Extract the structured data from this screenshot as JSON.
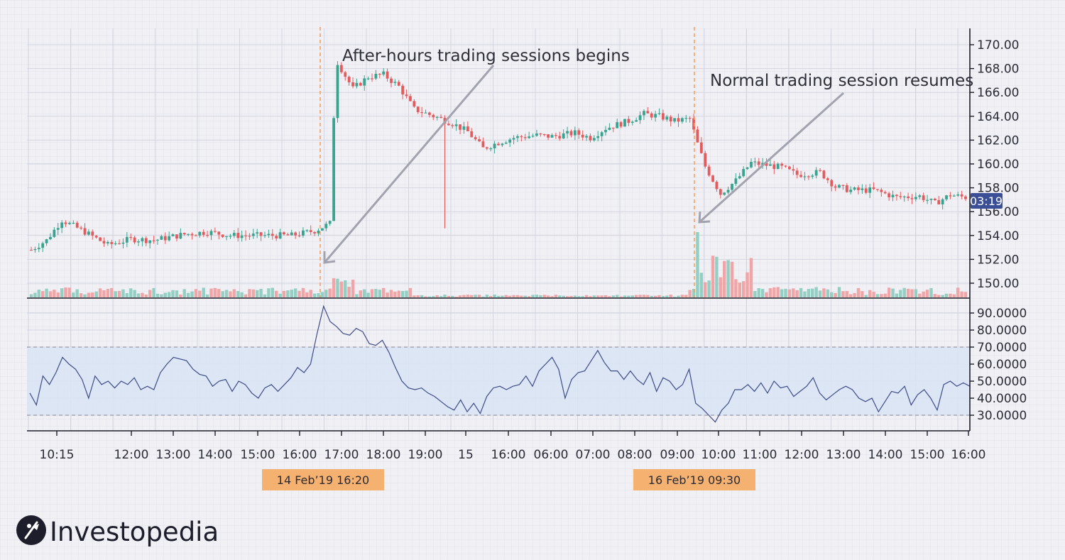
{
  "brand": {
    "name": "Investopedia",
    "icon": "investopedia-logo-icon"
  },
  "annotations": {
    "after_hours": "After-hours trading sessions begins",
    "normal_resumes": "Normal trading session resumes"
  },
  "date_badges": {
    "left": "14 Feb’19  16:20",
    "right": "16 Feb’19  09:30"
  },
  "last_price_label": "03:19",
  "colors": {
    "up": "#3aa38f",
    "down": "#e45b5e",
    "vol_up": "#93cfc3",
    "vol_down": "#f0a5a7",
    "rsi_line": "#3f4c8a",
    "rsi_band": "#d8e4f3",
    "marker": "#f4a261",
    "badge": "#f5b16f",
    "price_label_bg": "#3b4f96"
  },
  "chart_data": [
    {
      "type": "candlestick",
      "y_ticks": [
        "170.00",
        "168.00",
        "166.00",
        "164.00",
        "162.00",
        "160.00",
        "158.00",
        "156.00",
        "154.00",
        "152.00",
        "150.00"
      ],
      "ylim": [
        149.0,
        171.5
      ],
      "x_ticks": [
        "10:15",
        "12:00",
        "13:00",
        "14:00",
        "15:00",
        "16:00",
        "17:00",
        "18:00",
        "19:00",
        "15",
        "16:00",
        "06:00",
        "07:00",
        "08:00",
        "09:00",
        "10:00",
        "11:00",
        "12:00",
        "13:00",
        "14:00",
        "15:00",
        "16:00"
      ],
      "events": [
        {
          "label": "14 Feb’19 16:20",
          "note": "After-hours trading sessions begins"
        },
        {
          "label": "16 Feb’19 09:30",
          "note": "Normal trading session resumes"
        }
      ],
      "series_path": [
        {
          "x": 0,
          "y": 152.8
        },
        {
          "x": 4,
          "y": 153.6
        },
        {
          "x": 8,
          "y": 155.3
        },
        {
          "x": 14,
          "y": 154.3
        },
        {
          "x": 20,
          "y": 153.2
        },
        {
          "x": 26,
          "y": 153.7
        },
        {
          "x": 32,
          "y": 153.6
        },
        {
          "x": 40,
          "y": 154.1
        },
        {
          "x": 46,
          "y": 154.3
        },
        {
          "x": 52,
          "y": 154.0
        },
        {
          "x": 60,
          "y": 154.0
        },
        {
          "x": 68,
          "y": 154.0
        },
        {
          "x": 74,
          "y": 154.4
        },
        {
          "x": 78,
          "y": 155.0
        },
        {
          "x": 79,
          "y": 164.0
        },
        {
          "x": 80,
          "y": 168.5
        },
        {
          "x": 84,
          "y": 166.3
        },
        {
          "x": 88,
          "y": 167.3
        },
        {
          "x": 92,
          "y": 167.5
        },
        {
          "x": 96,
          "y": 166.5
        },
        {
          "x": 100,
          "y": 164.6
        },
        {
          "x": 106,
          "y": 163.9
        },
        {
          "x": 110,
          "y": 163.4
        },
        {
          "x": 114,
          "y": 162.7
        },
        {
          "x": 118,
          "y": 161.3
        },
        {
          "x": 122,
          "y": 161.8
        },
        {
          "x": 126,
          "y": 162.2
        },
        {
          "x": 132,
          "y": 162.4
        },
        {
          "x": 136,
          "y": 162.3
        },
        {
          "x": 142,
          "y": 162.6
        },
        {
          "x": 146,
          "y": 162.2
        },
        {
          "x": 150,
          "y": 163.0
        },
        {
          "x": 156,
          "y": 163.6
        },
        {
          "x": 160,
          "y": 164.2
        },
        {
          "x": 164,
          "y": 164.0
        },
        {
          "x": 168,
          "y": 163.6
        },
        {
          "x": 172,
          "y": 163.8
        },
        {
          "x": 174,
          "y": 161.7
        },
        {
          "x": 176,
          "y": 159.8
        },
        {
          "x": 180,
          "y": 157.5
        },
        {
          "x": 184,
          "y": 158.6
        },
        {
          "x": 188,
          "y": 160.1
        },
        {
          "x": 192,
          "y": 159.9
        },
        {
          "x": 196,
          "y": 159.7
        },
        {
          "x": 200,
          "y": 159.1
        },
        {
          "x": 206,
          "y": 159.3
        },
        {
          "x": 210,
          "y": 158.1
        },
        {
          "x": 214,
          "y": 157.8
        },
        {
          "x": 220,
          "y": 157.8
        },
        {
          "x": 226,
          "y": 157.2
        },
        {
          "x": 232,
          "y": 157.3
        },
        {
          "x": 236,
          "y": 156.7
        },
        {
          "x": 240,
          "y": 157.4
        },
        {
          "x": 244,
          "y": 157.2
        }
      ],
      "volume_scale_note": "",
      "rsi": {
        "y_ticks": [
          "90.0000",
          "80.0000",
          "70.0000",
          "60.0000",
          "50.0000",
          "40.0000",
          "30.0000"
        ],
        "ylim": [
          22,
          97
        ],
        "band": [
          30,
          70
        ],
        "values": [
          43,
          36,
          53,
          48,
          55,
          64,
          60,
          57,
          51,
          40,
          53,
          48,
          50,
          46,
          50,
          48,
          52,
          45,
          47,
          45,
          55,
          60,
          64,
          63,
          62,
          57,
          54,
          53,
          47,
          50,
          51,
          44,
          50,
          48,
          43,
          40,
          46,
          48,
          44,
          48,
          52,
          58,
          55,
          60,
          78,
          94,
          85,
          82,
          78,
          77,
          81,
          79,
          72,
          71,
          74,
          67,
          58,
          50,
          46,
          45,
          46,
          43,
          41,
          38,
          35,
          33,
          39,
          32,
          37,
          31,
          41,
          46,
          47,
          45,
          47,
          48,
          53,
          47,
          56,
          60,
          64,
          57,
          40,
          51,
          55,
          56,
          62,
          68,
          61,
          56,
          56,
          51,
          56,
          51,
          48,
          55,
          44,
          52,
          50,
          45,
          48,
          57,
          37,
          34,
          30,
          26,
          33,
          37,
          45,
          45,
          48,
          44,
          49,
          43,
          50,
          46,
          47,
          41,
          44,
          47,
          52,
          43,
          39,
          42,
          45,
          47,
          45,
          40,
          38,
          40,
          32,
          38,
          44,
          43,
          47,
          36,
          42,
          45,
          40,
          33,
          48,
          50,
          47,
          49,
          47
        ],
        "title": ""
      }
    }
  ]
}
